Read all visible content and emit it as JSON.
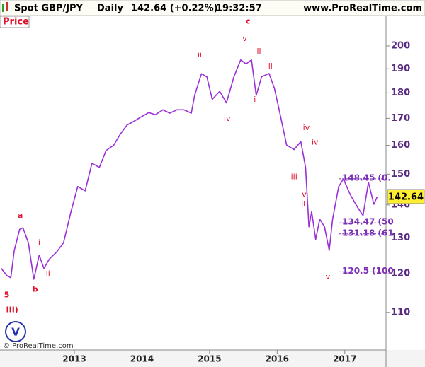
{
  "chart_data": {
    "type": "line",
    "title": "Spot GBP/JPY",
    "period": "Daily",
    "price_change": "142.64 (+0.22%)",
    "time": "19:32:57",
    "site": "www.ProRealTime.com",
    "panel_label": "Price",
    "copyright": "© ProRealTime.com",
    "logo": "V",
    "log_scale": true,
    "grid": false,
    "last_price": 142.64,
    "x": [
      2011.92,
      2012.0,
      2012.06,
      2012.11,
      2012.19,
      2012.24,
      2012.32,
      2012.4,
      2012.48,
      2012.55,
      2012.63,
      2012.74,
      2012.84,
      2012.95,
      2013.05,
      2013.16,
      2013.26,
      2013.37,
      2013.47,
      2013.58,
      2013.68,
      2013.78,
      2013.89,
      2013.99,
      2014.1,
      2014.2,
      2014.31,
      2014.41,
      2014.52,
      2014.62,
      2014.73,
      2014.78,
      2014.88,
      2014.96,
      2015.04,
      2015.15,
      2015.25,
      2015.36,
      2015.46,
      2015.54,
      2015.62,
      2015.69,
      2015.77,
      2015.88,
      2015.96,
      2016.04,
      2016.14,
      2016.25,
      2016.35,
      2016.42,
      2016.47,
      2016.51,
      2016.57,
      2016.63,
      2016.7,
      2016.77,
      2016.82,
      2016.91,
      2016.98,
      2017.08,
      2017.19,
      2017.27,
      2017.35,
      2017.43,
      2017.48
    ],
    "series": [
      {
        "name": "GBP/JPY",
        "color": "#9b30d9",
        "values": [
          121.4,
          119.5,
          118.9,
          126.3,
          132.5,
          133,
          128.6,
          118.5,
          125.1,
          121.4,
          124,
          126,
          128.6,
          137.9,
          145.9,
          144.5,
          153.7,
          152.3,
          158.2,
          160,
          164.1,
          167.5,
          169,
          170.6,
          172.2,
          171.4,
          173.3,
          172,
          173.3,
          173.3,
          172,
          179.1,
          187.9,
          186.6,
          177.4,
          180.6,
          176,
          186.6,
          193.8,
          192.1,
          193.8,
          179,
          186.6,
          188,
          181.8,
          172,
          160.1,
          158.5,
          161.4,
          152.3,
          133.3,
          137.9,
          129.6,
          135.6,
          133.3,
          126.4,
          135.6,
          145.9,
          148.4,
          143.3,
          139.2,
          136.7,
          147.3,
          140.2,
          142.6
        ]
      }
    ],
    "xlim": [
      2011.9,
      2017.61
    ],
    "xticks": [
      2013,
      2014,
      2015,
      2016,
      2017
    ],
    "ylim": [
      101.1,
      214.1
    ],
    "yticks": [
      110,
      120,
      130,
      140,
      150,
      160,
      170,
      180,
      190,
      200
    ],
    "levels": [
      {
        "value": 148.45,
        "label": "148.45 (0."
      },
      {
        "value": 134.47,
        "label": "134.47 (50"
      },
      {
        "value": 131.18,
        "label": "131.18 (61"
      },
      {
        "value": 120.5,
        "label": "120.5 (100"
      }
    ],
    "annotations": [
      {
        "text": "5",
        "x": 2012.0,
        "y": 114.3
      },
      {
        "text": "III)",
        "x": 2012.08,
        "y": 110.6
      },
      {
        "text": "a",
        "x": 2012.2,
        "y": 136.7
      },
      {
        "text": "b",
        "x": 2012.42,
        "y": 115.8
      },
      {
        "text": "i",
        "x": 2012.48,
        "y": 128.6
      },
      {
        "text": "ii",
        "x": 2012.61,
        "y": 119.9
      },
      {
        "text": "iii",
        "x": 2014.87,
        "y": 195.9
      },
      {
        "text": "iv",
        "x": 2015.26,
        "y": 169.9
      },
      {
        "text": "c",
        "x": 2015.57,
        "y": 211.2
      },
      {
        "text": "v",
        "x": 2015.52,
        "y": 203.2
      },
      {
        "text": "i",
        "x": 2015.51,
        "y": 181.3
      },
      {
        "text": "ii",
        "x": 2015.73,
        "y": 197.5
      },
      {
        "text": "i",
        "x": 2015.67,
        "y": 177.3
      },
      {
        "text": "ii",
        "x": 2015.9,
        "y": 191
      },
      {
        "text": "iv",
        "x": 2016.43,
        "y": 166.4
      },
      {
        "text": "iv",
        "x": 2016.56,
        "y": 161
      },
      {
        "text": "iii",
        "x": 2016.25,
        "y": 149
      },
      {
        "text": "v",
        "x": 2016.4,
        "y": 143.2
      },
      {
        "text": "iii",
        "x": 2016.37,
        "y": 140.2
      },
      {
        "text": "v",
        "x": 2016.75,
        "y": 119.0
      }
    ]
  }
}
